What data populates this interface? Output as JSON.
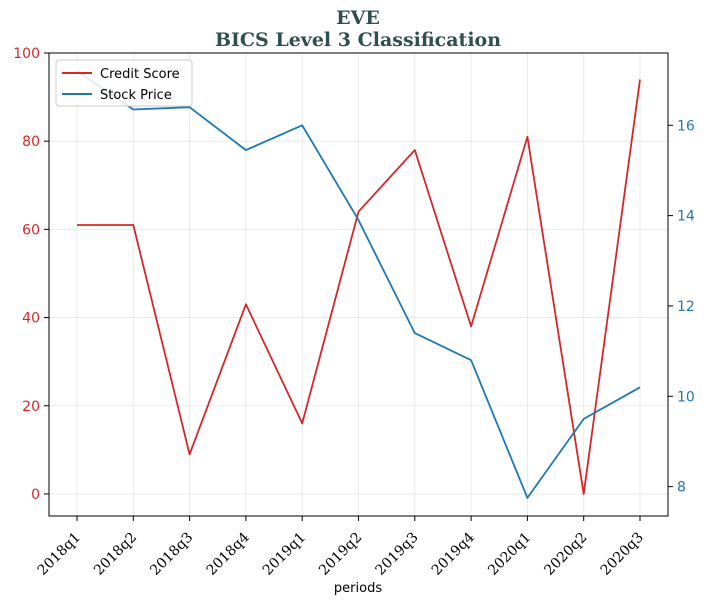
{
  "chart_data": {
    "type": "line",
    "title_line1": "EVE",
    "title_line2": "BICS Level 3 Classification",
    "xlabel": "periods",
    "categories": [
      "2018q1",
      "2018q2",
      "2018q3",
      "2018q4",
      "2019q1",
      "2019q2",
      "2019q3",
      "2019q4",
      "2020q1",
      "2020q2",
      "2020q3"
    ],
    "series": [
      {
        "name": "Credit Score",
        "axis": "left",
        "color": "#d62728",
        "values": [
          61,
          61,
          9,
          43,
          16,
          64,
          78,
          38,
          81,
          0,
          94
        ]
      },
      {
        "name": "Stock Price",
        "axis": "right",
        "color": "#1f77b4",
        "values": [
          17.2,
          16.35,
          16.4,
          15.45,
          16.0,
          13.9,
          11.4,
          10.8,
          7.75,
          9.5,
          10.2
        ]
      }
    ],
    "y_left": {
      "ylim": [
        -5,
        100
      ],
      "ticks": [
        0,
        20,
        40,
        60,
        80,
        100
      ],
      "color": "#d62728"
    },
    "y_right": {
      "ylim": [
        7.35,
        17.6
      ],
      "ticks": [
        8,
        10,
        12,
        14,
        16
      ],
      "color": "#1f77b4"
    },
    "legend": "top-left",
    "grid": true
  }
}
